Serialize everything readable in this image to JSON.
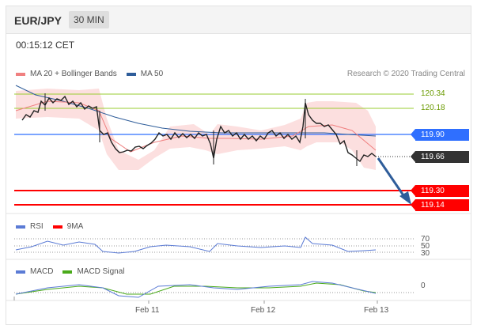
{
  "header": {
    "symbol": "EUR/JPY",
    "timeframe": "30 MIN"
  },
  "time": "00:15:12 CET",
  "legend": {
    "bb_label": "MA 20 + Bollinger Bands",
    "ma50_label": "MA 50",
    "credit": "Research © 2020 Trading Central"
  },
  "levels": {
    "r2": "120.34",
    "r1": "120.18",
    "pivot": "119.90",
    "last": "119.66",
    "s1": "119.30",
    "s2": "119.14"
  },
  "rsi": {
    "label": "RSI",
    "signal_label": "9MA",
    "levels": [
      "70",
      "50",
      "30"
    ]
  },
  "macd": {
    "label": "MACD",
    "signal_label": "MACD Signal",
    "zero": "0"
  },
  "xaxis": [
    "Feb 11",
    "Feb 12",
    "Feb 13"
  ],
  "colors": {
    "bollinger": "#f08080",
    "ma50": "#2f5d9a",
    "pivot": "#2f6fff",
    "support": "#ff0000",
    "resistance": "#9acd32",
    "last": "#333333",
    "rsi": "#5b7bd5",
    "rsi9": "#ff0000",
    "macd": "#5b7bd5",
    "macd_signal": "#4aaa1a"
  }
}
